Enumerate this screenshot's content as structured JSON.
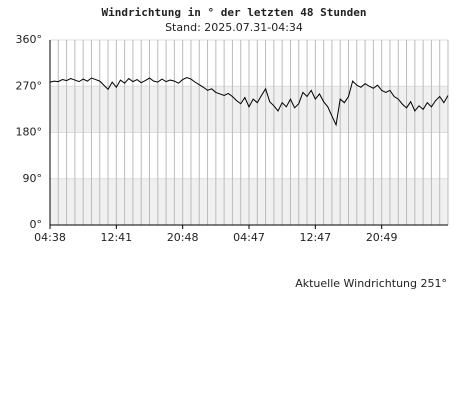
{
  "chart_data": {
    "type": "line",
    "title": "Windrichtung in ° der letzten 48 Stunden",
    "subtitle": "Stand: 2025.07.31-04:34",
    "annotation": "Aktuelle Windrichtung 251°",
    "color": "#000000",
    "ylim": [
      0,
      360
    ],
    "yticks": [
      {
        "value": 0,
        "label": "0°"
      },
      {
        "value": 90,
        "label": "90°"
      },
      {
        "value": 180,
        "label": "180°"
      },
      {
        "value": 270,
        "label": "270°"
      },
      {
        "value": 360,
        "label": "360°"
      }
    ],
    "xlim": [
      0,
      48
    ],
    "xticks": [
      {
        "value": 0,
        "label": "04:38"
      },
      {
        "value": 8,
        "label": "12:41"
      },
      {
        "value": 16,
        "label": "20:48"
      },
      {
        "value": 24,
        "label": "04:47"
      },
      {
        "value": 32,
        "label": "12:47"
      },
      {
        "value": 40,
        "label": "20:49"
      }
    ],
    "x_minor_ticks": [
      0,
      1,
      2,
      3,
      4,
      5,
      6,
      7,
      8,
      9,
      10,
      11,
      12,
      13,
      14,
      15,
      16,
      17,
      18,
      19,
      20,
      21,
      22,
      23,
      24,
      25,
      26,
      27,
      28,
      29,
      30,
      31,
      32,
      33,
      34,
      35,
      36,
      37,
      38,
      39,
      40,
      41,
      42,
      43,
      44,
      45,
      46,
      47,
      48
    ],
    "x": [
      0,
      0.5,
      1,
      1.5,
      2,
      2.5,
      3,
      3.5,
      4,
      4.5,
      5,
      5.5,
      6,
      6.5,
      7,
      7.5,
      8,
      8.5,
      9,
      9.5,
      10,
      10.5,
      11,
      11.5,
      12,
      12.5,
      13,
      13.5,
      14,
      14.5,
      15,
      15.5,
      16,
      16.5,
      17,
      17.5,
      18,
      18.5,
      19,
      19.5,
      20,
      20.5,
      21,
      21.5,
      22,
      22.5,
      23,
      23.5,
      24,
      24.5,
      25,
      25.5,
      26,
      26.5,
      27,
      27.5,
      28,
      28.5,
      29,
      29.5,
      30,
      30.5,
      31,
      31.5,
      32,
      32.5,
      33,
      33.5,
      34,
      34.5,
      35,
      35.5,
      36,
      36.5,
      37,
      37.5,
      38,
      38.5,
      39,
      39.5,
      40,
      40.5,
      41,
      41.5,
      42,
      42.5,
      43,
      43.5,
      44,
      44.5,
      45,
      45.5,
      46,
      46.5,
      47,
      47.5,
      48
    ],
    "values": [
      278,
      280,
      279,
      283,
      281,
      285,
      282,
      279,
      284,
      280,
      286,
      283,
      280,
      272,
      264,
      278,
      268,
      282,
      276,
      285,
      279,
      283,
      277,
      281,
      286,
      280,
      278,
      284,
      279,
      282,
      280,
      276,
      283,
      287,
      284,
      278,
      273,
      268,
      262,
      265,
      258,
      255,
      252,
      256,
      250,
      242,
      236,
      248,
      230,
      245,
      238,
      252,
      265,
      240,
      232,
      222,
      238,
      230,
      245,
      228,
      236,
      258,
      250,
      262,
      245,
      255,
      240,
      230,
      212,
      195,
      245,
      238,
      250,
      280,
      272,
      268,
      275,
      270,
      266,
      272,
      262,
      258,
      262,
      250,
      245,
      235,
      228,
      240,
      222,
      232,
      225,
      238,
      230,
      242,
      250,
      238,
      252
    ]
  }
}
